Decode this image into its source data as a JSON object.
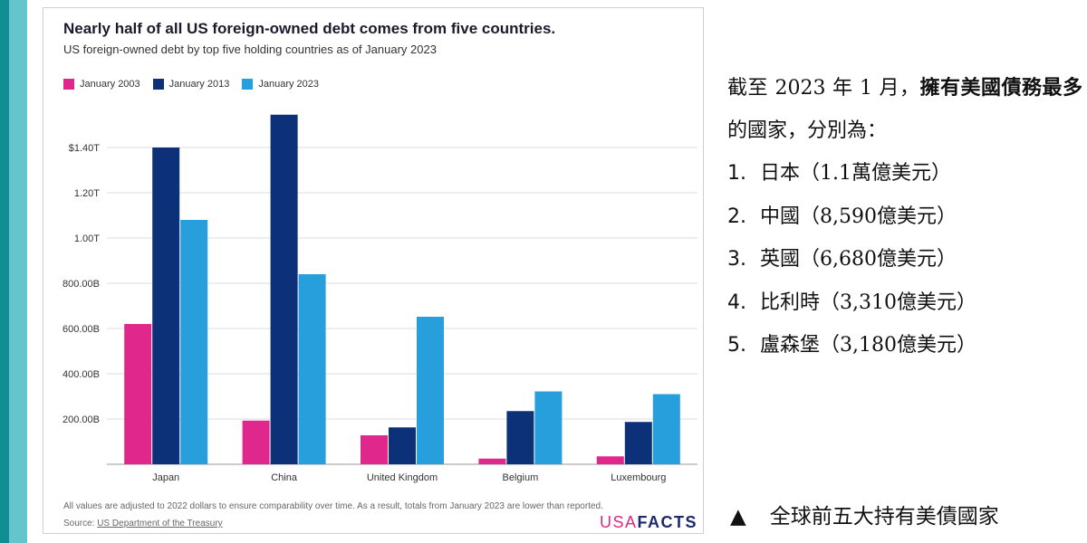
{
  "chart_data": {
    "type": "bar",
    "title": "Nearly half of all US foreign-owned debt comes from five countries.",
    "subtitle": "US foreign-owned debt by top five holding countries as of January 2023",
    "categories": [
      "Japan",
      "China",
      "United Kingdom",
      "Belgium",
      "Luxembourg"
    ],
    "series": [
      {
        "name": "January 2003",
        "color": "#e0288c",
        "values": [
          620,
          193,
          128,
          25,
          35
        ]
      },
      {
        "name": "January 2013",
        "color": "#0d3178",
        "values": [
          1400,
          1545,
          163,
          235,
          187
        ]
      },
      {
        "name": "January 2023",
        "color": "#279fdc",
        "values": [
          1080,
          840,
          652,
          322,
          310
        ]
      }
    ],
    "ylim": [
      0,
      1600
    ],
    "yticks": [
      200,
      400,
      600,
      800,
      1000,
      1200,
      1400
    ],
    "ytick_labels": [
      "200.00B",
      "400.00B",
      "600.00B",
      "800.00B",
      "1.00T",
      "1.20T",
      "$1.40T"
    ],
    "grid": true,
    "legend_position": "top-left",
    "footnote": "All values are adjusted to 2022 dollars to ensure comparability over time. As a result, totals from January 2023 are lower than reported.",
    "source_label": "Source: ",
    "source_link": "US Department of the Treasury"
  },
  "brand": {
    "usa": "USA",
    "facts": "FACTS",
    "usa_color": "#e0287d",
    "facts_color": "#1a2a6c"
  },
  "text_panel": {
    "intro_prefix": "截至 2023 年 1 月，",
    "intro_bold": "擁有美國債務最多",
    "intro_suffix": "的國家，分別為：",
    "items": [
      {
        "num": "1.",
        "text": "日本（1.1萬億美元）"
      },
      {
        "num": "2.",
        "text": "中國（8,590億美元）"
      },
      {
        "num": "3.",
        "text": "英國（6,680億美元）"
      },
      {
        "num": "4.",
        "text": "比利時（3,310億美元）"
      },
      {
        "num": "5.",
        "text": "盧森堡（3,180億美元）"
      }
    ]
  },
  "caption": {
    "marker": "▲",
    "text": "全球前五大持有美債國家"
  }
}
